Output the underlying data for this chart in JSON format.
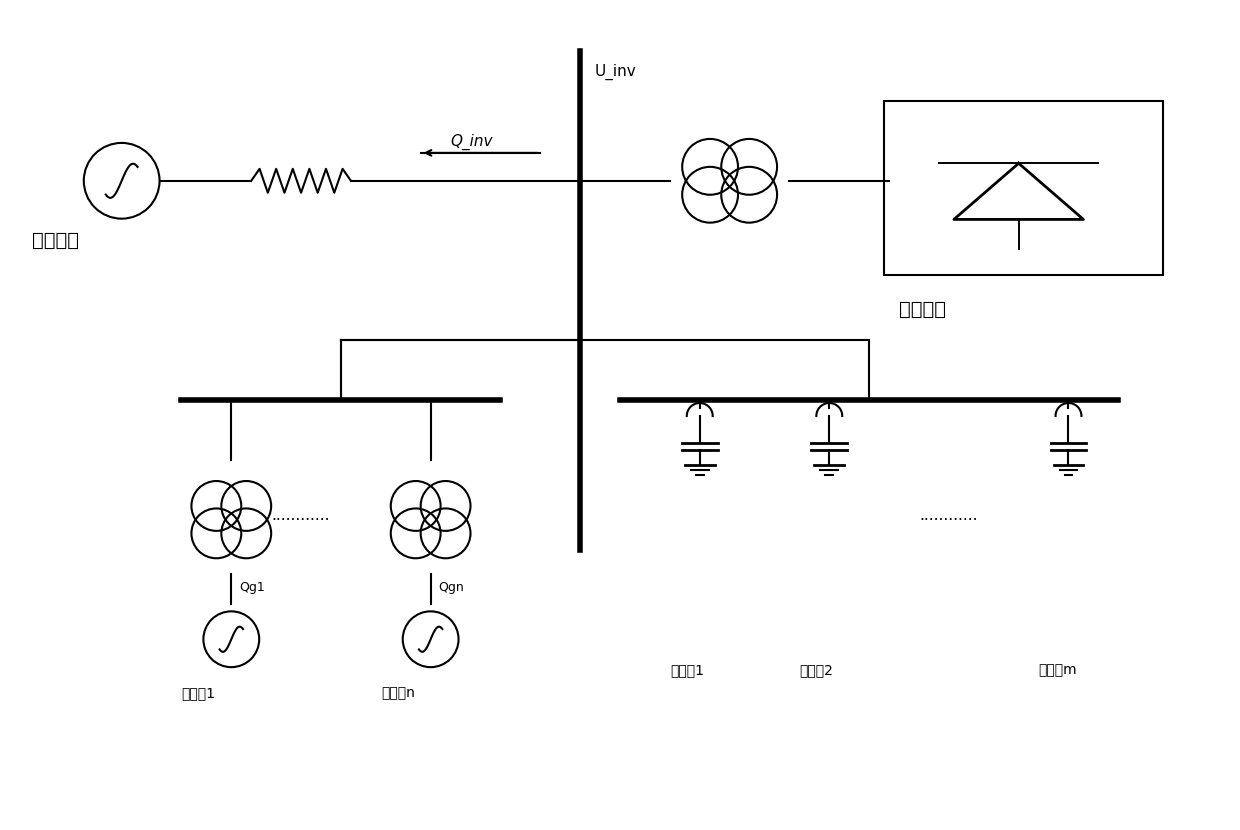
{
  "title": "",
  "bg_color": "#ffffff",
  "line_color": "#000000",
  "text_color": "#000000",
  "fig_width": 12.4,
  "fig_height": 8.3,
  "labels": {
    "ac_system": "交流系统",
    "dc_system": "直流系统",
    "u_inv": "U_inv",
    "q_inv": "Q_inv",
    "qg1": "Qg1",
    "qgn": "Qgn",
    "phase1": "调相机1",
    "phasen": "调相机n",
    "filter1": "滤波器1",
    "filter2": "滤波器2",
    "filterm": "滤波器m",
    "dots": "............"
  }
}
